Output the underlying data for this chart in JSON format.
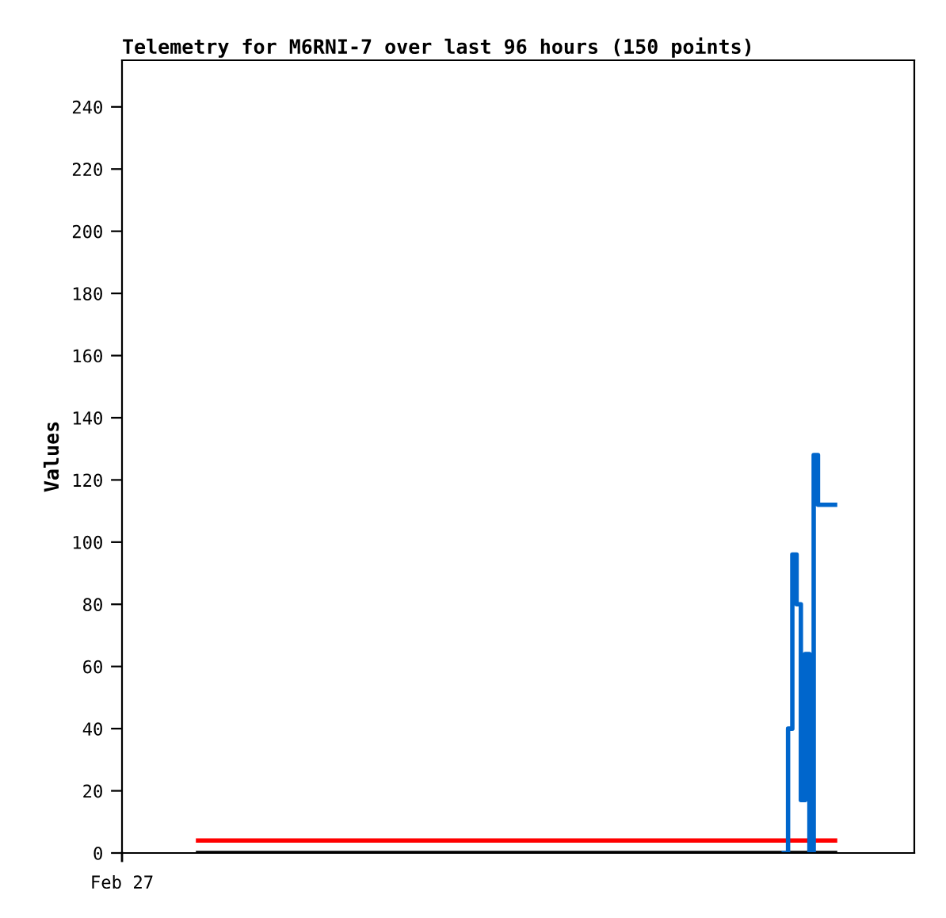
{
  "chart_data": {
    "type": "step",
    "title": "Telemetry for M6RNI-7 over last 96 hours (150 points)",
    "ylabel": "Values",
    "annotations": [
      "Feb 27"
    ],
    "categories": [
      null,
      null,
      null,
      null,
      null,
      null,
      null,
      null,
      null,
      null,
      null,
      null,
      null,
      null,
      null,
      null,
      null,
      null,
      null,
      null,
      null,
      null,
      null,
      null,
      null,
      null,
      null,
      null,
      null,
      null,
      null,
      null,
      null,
      null,
      null,
      null,
      null,
      null,
      null,
      null,
      null,
      null,
      null,
      null,
      null,
      null,
      null,
      null,
      null,
      null,
      null,
      null,
      null,
      null,
      null,
      null,
      null,
      null,
      null,
      null,
      null,
      null,
      null,
      null,
      null,
      null,
      null,
      null,
      null,
      null,
      null,
      null,
      null,
      null,
      null,
      null,
      null,
      null,
      null,
      null,
      null,
      null,
      null,
      null,
      null,
      null,
      null,
      null,
      null,
      null,
      null,
      null,
      null,
      null,
      null,
      null,
      null,
      null,
      null,
      null,
      null,
      null,
      null,
      null,
      null,
      null,
      null,
      null,
      null,
      null,
      null,
      null,
      null,
      null,
      null,
      null,
      null,
      null,
      null,
      null,
      null,
      null,
      null,
      null,
      null,
      null,
      null,
      null,
      null,
      null,
      null,
      null,
      null,
      null,
      null,
      null,
      null,
      null,
      null,
      null,
      null,
      null,
      null,
      null,
      null,
      null,
      null,
      null,
      null,
      null
    ],
    "ylim": [
      0,
      255
    ],
    "yticks": [
      0,
      20,
      40,
      60,
      80,
      100,
      120,
      140,
      160,
      180,
      200,
      220,
      240
    ],
    "grid": false,
    "legend": false,
    "line_style": "solid",
    "marker": "none",
    "series": [
      {
        "color": "#000000",
        "values": [
          0,
          0,
          0,
          0,
          0,
          0,
          0,
          0,
          0,
          0,
          0,
          0,
          0,
          0,
          0,
          0,
          0,
          0,
          0,
          0,
          0,
          0,
          0,
          0,
          0,
          0,
          0,
          0,
          0,
          0,
          0,
          0,
          0,
          0,
          0,
          0,
          0,
          0,
          0,
          0,
          0,
          0,
          0,
          0,
          0,
          0,
          0,
          0,
          0,
          0,
          0,
          0,
          0,
          0,
          0,
          0,
          0,
          0,
          0,
          0,
          0,
          0,
          0,
          0,
          0,
          0,
          0,
          0,
          0,
          0,
          0,
          0,
          0,
          0,
          0,
          0,
          0,
          0,
          0,
          0,
          0,
          0,
          0,
          0,
          0,
          0,
          0,
          0,
          0,
          0,
          0,
          0,
          0,
          0,
          0,
          0,
          0,
          0,
          0,
          0,
          0,
          0,
          0,
          0,
          0,
          0,
          0,
          0,
          0,
          0,
          0,
          0,
          0,
          0,
          0,
          0,
          0,
          0,
          0,
          0,
          0,
          0,
          0,
          0,
          0,
          0,
          0,
          0,
          0,
          0,
          0,
          0,
          0,
          0,
          0,
          0,
          0,
          0,
          0,
          0,
          0,
          0,
          0,
          0,
          0,
          0,
          0,
          0,
          0,
          0
        ]
      },
      {
        "color": "#ff0000",
        "values": [
          4,
          4,
          4,
          4,
          4,
          4,
          4,
          4,
          4,
          4,
          4,
          4,
          4,
          4,
          4,
          4,
          4,
          4,
          4,
          4,
          4,
          4,
          4,
          4,
          4,
          4,
          4,
          4,
          4,
          4,
          4,
          4,
          4,
          4,
          4,
          4,
          4,
          4,
          4,
          4,
          4,
          4,
          4,
          4,
          4,
          4,
          4,
          4,
          4,
          4,
          4,
          4,
          4,
          4,
          4,
          4,
          4,
          4,
          4,
          4,
          4,
          4,
          4,
          4,
          4,
          4,
          4,
          4,
          4,
          4,
          4,
          4,
          4,
          4,
          4,
          4,
          4,
          4,
          4,
          4,
          4,
          4,
          4,
          4,
          4,
          4,
          4,
          4,
          4,
          4,
          4,
          4,
          4,
          4,
          4,
          4,
          4,
          4,
          4,
          4,
          4,
          4,
          4,
          4,
          4,
          4,
          4,
          4,
          4,
          4,
          4,
          4,
          4,
          4,
          4,
          4,
          4,
          4,
          4,
          4,
          4,
          4,
          4,
          4,
          4,
          4,
          4,
          4,
          4,
          4,
          4,
          4,
          4,
          4,
          4,
          4,
          4,
          4,
          4,
          4,
          4,
          4,
          4,
          4,
          4,
          4,
          4,
          4,
          4,
          4
        ]
      },
      {
        "color": "#0066cc",
        "values": [
          null,
          null,
          null,
          null,
          null,
          null,
          null,
          null,
          null,
          null,
          null,
          null,
          null,
          null,
          null,
          null,
          null,
          null,
          null,
          null,
          null,
          null,
          null,
          null,
          null,
          null,
          null,
          null,
          null,
          null,
          null,
          null,
          null,
          null,
          null,
          null,
          null,
          null,
          null,
          null,
          null,
          null,
          null,
          null,
          null,
          null,
          null,
          null,
          null,
          null,
          null,
          null,
          null,
          null,
          null,
          null,
          null,
          null,
          null,
          null,
          null,
          null,
          null,
          null,
          null,
          null,
          null,
          null,
          null,
          null,
          null,
          null,
          null,
          null,
          null,
          null,
          null,
          null,
          null,
          null,
          null,
          null,
          null,
          null,
          null,
          null,
          null,
          null,
          null,
          null,
          null,
          null,
          null,
          null,
          null,
          null,
          null,
          null,
          null,
          null,
          null,
          null,
          null,
          null,
          null,
          null,
          null,
          null,
          null,
          null,
          null,
          null,
          null,
          null,
          null,
          null,
          null,
          null,
          null,
          null,
          null,
          null,
          null,
          null,
          null,
          null,
          null,
          null,
          null,
          null,
          null,
          null,
          null,
          null,
          null,
          null,
          null,
          0,
          40,
          96,
          80,
          17,
          64,
          0,
          128,
          112,
          112,
          112,
          112,
          112
        ]
      }
    ]
  }
}
